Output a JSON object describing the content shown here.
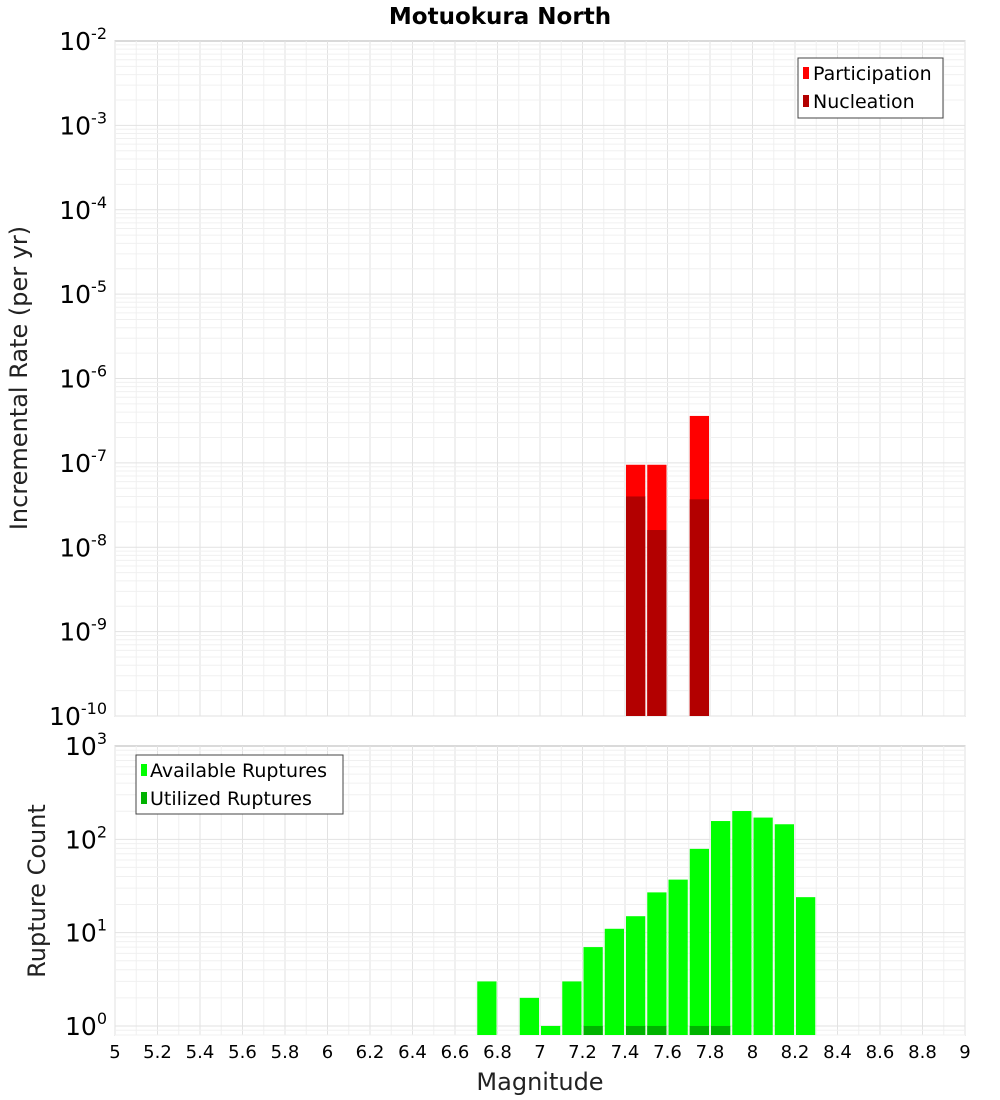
{
  "chart_data": [
    {
      "type": "bar",
      "title": "Motuokura North",
      "ylabel": "Incremental Rate (per yr)",
      "xlabel": "",
      "y_scale": "log",
      "ylim": [
        1e-10,
        0.01
      ],
      "xlim": [
        5,
        9
      ],
      "bin_width": 0.1,
      "legend_position": "top-right",
      "y_ticks": [
        {
          "base": "10",
          "exp": "-10",
          "value": 1e-10
        },
        {
          "base": "10",
          "exp": "-9",
          "value": 1e-09
        },
        {
          "base": "10",
          "exp": "-8",
          "value": 1e-08
        },
        {
          "base": "10",
          "exp": "-7",
          "value": 1e-07
        },
        {
          "base": "10",
          "exp": "-6",
          "value": 1e-06
        },
        {
          "base": "10",
          "exp": "-5",
          "value": 1e-05
        },
        {
          "base": "10",
          "exp": "-4",
          "value": 0.0001
        },
        {
          "base": "10",
          "exp": "-3",
          "value": 0.001
        },
        {
          "base": "10",
          "exp": "-2",
          "value": 0.01
        }
      ],
      "series": [
        {
          "name": "Participation",
          "color": "#ff0000",
          "points": [
            {
              "x": 7.45,
              "y": 9.5e-08
            },
            {
              "x": 7.55,
              "y": 9.5e-08
            },
            {
              "x": 7.75,
              "y": 3.6e-07
            }
          ]
        },
        {
          "name": "Nucleation",
          "color": "#b30000",
          "points": [
            {
              "x": 7.45,
              "y": 4e-08
            },
            {
              "x": 7.55,
              "y": 1.6e-08
            },
            {
              "x": 7.75,
              "y": 3.7e-08
            }
          ]
        }
      ]
    },
    {
      "type": "bar",
      "title": "",
      "ylabel": "Rupture Count",
      "xlabel": "Magnitude",
      "y_scale": "log",
      "ylim": [
        0.8,
        1000
      ],
      "xlim": [
        5,
        9
      ],
      "bin_width": 0.1,
      "legend_position": "top-left",
      "y_ticks": [
        {
          "base": "10",
          "exp": "0",
          "value": 1
        },
        {
          "base": "10",
          "exp": "1",
          "value": 10
        },
        {
          "base": "10",
          "exp": "2",
          "value": 100
        },
        {
          "base": "10",
          "exp": "3",
          "value": 1000
        }
      ],
      "x_ticks": [
        "5",
        "5.2",
        "5.4",
        "5.6",
        "5.8",
        "6",
        "6.2",
        "6.4",
        "6.6",
        "6.8",
        "7",
        "7.2",
        "7.4",
        "7.6",
        "7.8",
        "8",
        "8.2",
        "8.4",
        "8.6",
        "8.8",
        "9"
      ],
      "series": [
        {
          "name": "Available Ruptures",
          "color": "#00ff00",
          "points": [
            {
              "x": 6.75,
              "y": 3
            },
            {
              "x": 6.95,
              "y": 2
            },
            {
              "x": 7.05,
              "y": 1
            },
            {
              "x": 7.15,
              "y": 3
            },
            {
              "x": 7.25,
              "y": 7
            },
            {
              "x": 7.35,
              "y": 11
            },
            {
              "x": 7.45,
              "y": 15
            },
            {
              "x": 7.55,
              "y": 27
            },
            {
              "x": 7.65,
              "y": 37
            },
            {
              "x": 7.75,
              "y": 79
            },
            {
              "x": 7.85,
              "y": 157
            },
            {
              "x": 7.95,
              "y": 201
            },
            {
              "x": 8.05,
              "y": 171
            },
            {
              "x": 8.15,
              "y": 145
            },
            {
              "x": 8.25,
              "y": 24
            }
          ]
        },
        {
          "name": "Utilized Ruptures",
          "color": "#00b300",
          "points": [
            {
              "x": 7.25,
              "y": 1
            },
            {
              "x": 7.45,
              "y": 1
            },
            {
              "x": 7.55,
              "y": 1
            },
            {
              "x": 7.75,
              "y": 1
            },
            {
              "x": 7.85,
              "y": 1
            }
          ]
        }
      ]
    }
  ]
}
